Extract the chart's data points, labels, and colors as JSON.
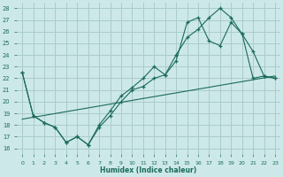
{
  "xlabel": "Humidex (Indice chaleur)",
  "xlim": [
    -0.5,
    23.5
  ],
  "ylim": [
    15.5,
    28.5
  ],
  "xticks": [
    0,
    1,
    2,
    3,
    4,
    5,
    6,
    7,
    8,
    9,
    10,
    11,
    12,
    13,
    14,
    15,
    16,
    17,
    18,
    19,
    20,
    21,
    22,
    23
  ],
  "yticks": [
    16,
    17,
    18,
    19,
    20,
    21,
    22,
    23,
    24,
    25,
    26,
    27,
    28
  ],
  "bg_color": "#cde8e8",
  "grid_color": "#aacccc",
  "line_color": "#1a6b5a",
  "line1_x": [
    0,
    1,
    2,
    3,
    4,
    5,
    6,
    7,
    8,
    9,
    10,
    11,
    12,
    13,
    14,
    15,
    16,
    17,
    18,
    19,
    20,
    21,
    22,
    23
  ],
  "line1_y": [
    22.5,
    18.8,
    18.2,
    17.8,
    16.5,
    17.0,
    16.3,
    18.0,
    19.2,
    20.5,
    21.2,
    22.0,
    23.0,
    22.3,
    24.0,
    25.5,
    26.2,
    27.2,
    28.0,
    27.2,
    25.8,
    24.3,
    22.2,
    22.0
  ],
  "line2_x": [
    0,
    1,
    2,
    3,
    4,
    5,
    6,
    7,
    8,
    9,
    10,
    11,
    12,
    13,
    14,
    15,
    16,
    17,
    18,
    19,
    20,
    21,
    22,
    23
  ],
  "line2_y": [
    22.5,
    18.8,
    18.2,
    17.8,
    16.5,
    17.0,
    16.3,
    17.8,
    18.8,
    20.0,
    21.0,
    21.3,
    22.0,
    22.3,
    23.5,
    26.8,
    27.2,
    25.2,
    24.8,
    26.8,
    25.8,
    22.0,
    22.2,
    22.0
  ],
  "line3_x": [
    0,
    23
  ],
  "line3_y": [
    18.5,
    22.2
  ]
}
